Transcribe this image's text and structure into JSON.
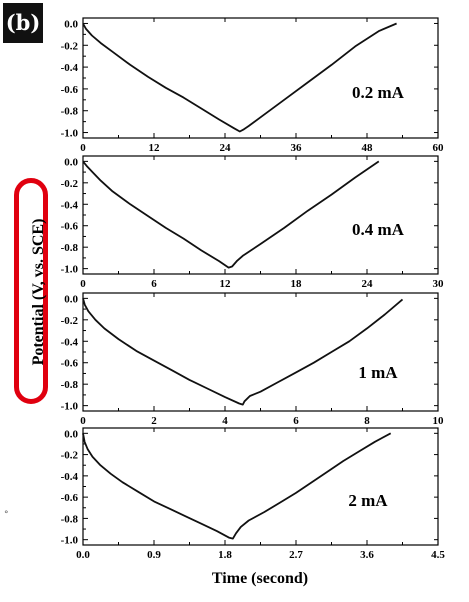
{
  "panel_label": "(b)",
  "colors": {
    "axis": "#000000",
    "curve": "#111111",
    "highlight": "#e0000f",
    "label_bg": "#111111"
  },
  "stray_mark": "°",
  "chart_data": {
    "type": "line",
    "ylabel": "Potential (V, vs. SCE)",
    "xlabel": "Time (second)",
    "panels": [
      {
        "annotation": "0.2 mA",
        "xlim": [
          0,
          60
        ],
        "xticks": [
          0,
          12,
          24,
          36,
          48,
          60
        ],
        "xtick_labels": [
          "0",
          "12",
          "24",
          "36",
          "48",
          "60"
        ],
        "ylim": [
          -1.05,
          0.05
        ],
        "yticks": [
          0.0,
          -0.2,
          -0.4,
          -0.6,
          -0.8,
          -1.0
        ],
        "ytick_labels": [
          "0.0",
          "-0.2",
          "-0.4",
          "-0.6",
          "-0.8",
          "-1.0"
        ],
        "x": [
          0,
          0.5,
          1.5,
          3,
          5,
          8,
          11,
          14,
          17,
          20,
          23,
          25.5,
          26.5,
          27.2,
          28,
          30,
          34,
          38,
          42,
          46,
          50,
          53
        ],
        "y": [
          0.0,
          -0.05,
          -0.11,
          -0.18,
          -0.26,
          -0.38,
          -0.49,
          -0.59,
          -0.68,
          -0.78,
          -0.88,
          -0.96,
          -0.99,
          -0.97,
          -0.94,
          -0.86,
          -0.7,
          -0.54,
          -0.38,
          -0.21,
          -0.07,
          0.0
        ]
      },
      {
        "annotation": "0.4 mA",
        "xlim": [
          0,
          30
        ],
        "xticks": [
          0,
          6,
          12,
          18,
          24,
          30
        ],
        "xtick_labels": [
          "0",
          "6",
          "12",
          "18",
          "24",
          "30"
        ],
        "ylim": [
          -1.05,
          0.05
        ],
        "yticks": [
          0.0,
          -0.2,
          -0.4,
          -0.6,
          -0.8,
          -1.0
        ],
        "ytick_labels": [
          "0.0",
          "-0.2",
          "-0.4",
          "-0.6",
          "-0.8",
          "-1.0"
        ],
        "x": [
          0,
          0.3,
          0.8,
          1.5,
          2.5,
          4,
          5.5,
          7,
          8.5,
          10,
          11.5,
          12.3,
          12.6,
          13,
          13.5,
          15,
          17,
          19,
          21,
          23,
          25
        ],
        "y": [
          0.0,
          -0.04,
          -0.1,
          -0.18,
          -0.28,
          -0.4,
          -0.51,
          -0.62,
          -0.72,
          -0.83,
          -0.93,
          -0.99,
          -0.98,
          -0.93,
          -0.88,
          -0.77,
          -0.62,
          -0.46,
          -0.31,
          -0.15,
          0.0
        ]
      },
      {
        "annotation": "1 mA",
        "xlim": [
          0,
          10
        ],
        "xticks": [
          0,
          2,
          4,
          6,
          8,
          10
        ],
        "xtick_labels": [
          "0",
          "2",
          "4",
          "6",
          "8",
          "10"
        ],
        "ylim": [
          -1.05,
          0.05
        ],
        "yticks": [
          0.0,
          -0.2,
          -0.4,
          -0.6,
          -0.8,
          -1.0
        ],
        "ytick_labels": [
          "0.0",
          "-0.2",
          "-0.4",
          "-0.6",
          "-0.8",
          "-1.0"
        ],
        "x": [
          0,
          0.05,
          0.15,
          0.35,
          0.6,
          1.0,
          1.5,
          2.0,
          2.5,
          3.0,
          3.5,
          4.0,
          4.4,
          4.5,
          4.55,
          4.7,
          5.0,
          5.5,
          6.0,
          6.5,
          7.0,
          7.5,
          8.0,
          8.5,
          9.0
        ],
        "y": [
          0.0,
          -0.06,
          -0.12,
          -0.2,
          -0.28,
          -0.38,
          -0.49,
          -0.58,
          -0.67,
          -0.76,
          -0.84,
          -0.92,
          -0.98,
          -0.99,
          -0.96,
          -0.91,
          -0.87,
          -0.78,
          -0.69,
          -0.6,
          -0.5,
          -0.4,
          -0.28,
          -0.15,
          -0.01
        ]
      },
      {
        "annotation": "2 mA",
        "xlim": [
          0,
          4.5
        ],
        "xticks": [
          0.0,
          0.9,
          1.8,
          2.7,
          3.6,
          4.5
        ],
        "xtick_labels": [
          "0.0",
          "0.9",
          "1.8",
          "2.7",
          "3.6",
          "4.5"
        ],
        "ylim": [
          -1.05,
          0.05
        ],
        "yticks": [
          0.0,
          -0.2,
          -0.4,
          -0.6,
          -0.8,
          -1.0
        ],
        "ytick_labels": [
          "0.0",
          "-0.2",
          "-0.4",
          "-0.6",
          "-0.8",
          "-1.0"
        ],
        "x": [
          0,
          0.02,
          0.06,
          0.12,
          0.22,
          0.35,
          0.5,
          0.7,
          0.9,
          1.1,
          1.3,
          1.5,
          1.7,
          1.85,
          1.9,
          1.94,
          2.0,
          2.1,
          2.3,
          2.5,
          2.7,
          2.9,
          3.1,
          3.3,
          3.5,
          3.7,
          3.9
        ],
        "y": [
          0.0,
          -0.08,
          -0.15,
          -0.22,
          -0.3,
          -0.38,
          -0.46,
          -0.55,
          -0.64,
          -0.71,
          -0.78,
          -0.85,
          -0.92,
          -0.98,
          -0.99,
          -0.94,
          -0.88,
          -0.82,
          -0.74,
          -0.65,
          -0.56,
          -0.46,
          -0.36,
          -0.26,
          -0.17,
          -0.08,
          0.0
        ]
      }
    ]
  }
}
